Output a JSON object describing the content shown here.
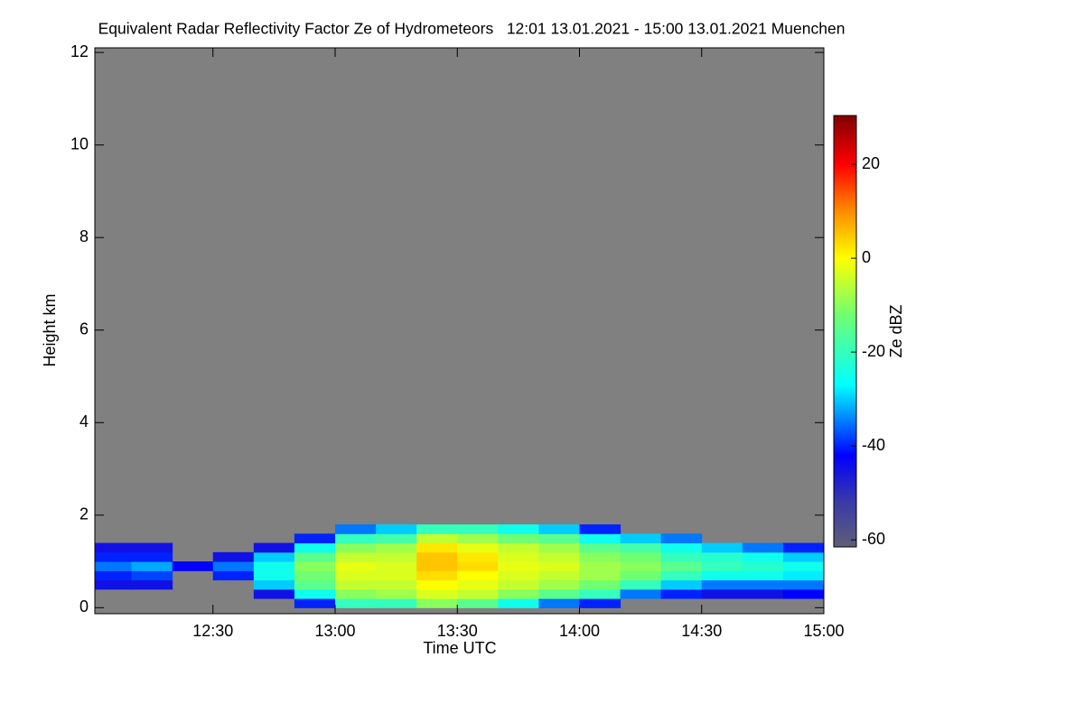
{
  "chart_data": {
    "type": "heatmap",
    "title": "Equivalent Radar Reflectivity Factor Ze of Hydrometeors   12:01 13.01.2021 - 15:00 13.01.2021 Muenchen",
    "xlabel": "Time UTC",
    "ylabel": "Height km",
    "colorbar_label": "Ze dBZ",
    "xlim": [
      12.0167,
      15.0
    ],
    "ylim": [
      -0.13,
      12.1
    ],
    "xticks": [
      {
        "value": 12.5,
        "label": "12:30"
      },
      {
        "value": 13.0,
        "label": "13:00"
      },
      {
        "value": 13.5,
        "label": "13:30"
      },
      {
        "value": 14.0,
        "label": "14:00"
      },
      {
        "value": 14.5,
        "label": "14:30"
      },
      {
        "value": 15.0,
        "label": "15:00"
      }
    ],
    "yticks": [
      0,
      2,
      4,
      6,
      8,
      10,
      12
    ],
    "clim": [
      -61.5,
      30.4
    ],
    "cticks": [
      -60,
      -40,
      -20,
      0,
      20
    ],
    "background": "#808080",
    "colormap": [
      {
        "value": -61.5,
        "color": "#5f5f78"
      },
      {
        "value": -52,
        "color": "#3a3aa8"
      },
      {
        "value": -42,
        "color": "#0000ff"
      },
      {
        "value": -27,
        "color": "#00ffff"
      },
      {
        "value": -12,
        "color": "#70ff70"
      },
      {
        "value": 0,
        "color": "#ffff00"
      },
      {
        "value": 10,
        "color": "#ff8c00"
      },
      {
        "value": 20,
        "color": "#ff0000"
      },
      {
        "value": 30.4,
        "color": "#800000"
      }
    ],
    "cell_width": 0.1667,
    "cell_height": 0.2,
    "x": [
      12.0833,
      12.25,
      12.4167,
      12.5833,
      12.75,
      12.9167,
      13.0833,
      13.25,
      13.4167,
      13.5833,
      13.75,
      13.9167,
      14.0833,
      14.25,
      14.4167,
      14.5833,
      14.75,
      14.9167
    ],
    "y": [
      0.1,
      0.3,
      0.5,
      0.7,
      0.9,
      1.1,
      1.3,
      1.5,
      1.7,
      1.9
    ],
    "z": [
      [
        null,
        null,
        -45,
        -40,
        -35,
        -40,
        -45,
        null,
        null,
        null
      ],
      [
        null,
        null,
        -45,
        -38,
        -32,
        -40,
        -45,
        null,
        null,
        null
      ],
      [
        null,
        null,
        null,
        null,
        -42,
        null,
        null,
        null,
        null,
        null
      ],
      [
        null,
        null,
        null,
        -40,
        -35,
        -45,
        null,
        null,
        null,
        null
      ],
      [
        null,
        -45,
        -30,
        -25,
        -25,
        -30,
        -45,
        null,
        null,
        null
      ],
      [
        -40,
        -25,
        -15,
        -12,
        -10,
        -15,
        -25,
        -40,
        null,
        null
      ],
      [
        -20,
        -10,
        -5,
        -3,
        -2,
        -5,
        -10,
        -20,
        -35,
        null
      ],
      [
        -20,
        -8,
        -5,
        -3,
        -3,
        -5,
        -8,
        -18,
        -30,
        null
      ],
      [
        -10,
        -3,
        0,
        3,
        5,
        5,
        2,
        -5,
        -20,
        null
      ],
      [
        -15,
        -5,
        -2,
        0,
        3,
        2,
        -2,
        -8,
        -20,
        null
      ],
      [
        -25,
        -10,
        -5,
        -3,
        -2,
        -3,
        -5,
        -12,
        -25,
        null
      ],
      [
        -35,
        -15,
        -8,
        -5,
        -3,
        -5,
        -8,
        -15,
        -30,
        null
      ],
      [
        -40,
        -20,
        -12,
        -8,
        -8,
        -10,
        -15,
        -25,
        -40,
        null
      ],
      [
        null,
        -35,
        -20,
        -12,
        -10,
        -12,
        -18,
        -30,
        null,
        null
      ],
      [
        null,
        -40,
        -30,
        -20,
        -15,
        -20,
        -25,
        -35,
        null,
        null
      ],
      [
        null,
        -45,
        -35,
        -25,
        -20,
        -22,
        -30,
        null,
        null,
        null
      ],
      [
        null,
        -45,
        -35,
        -25,
        -22,
        -25,
        -35,
        null,
        null,
        null
      ],
      [
        null,
        -42,
        -35,
        -28,
        -25,
        -30,
        -40,
        null,
        null,
        null
      ]
    ]
  }
}
